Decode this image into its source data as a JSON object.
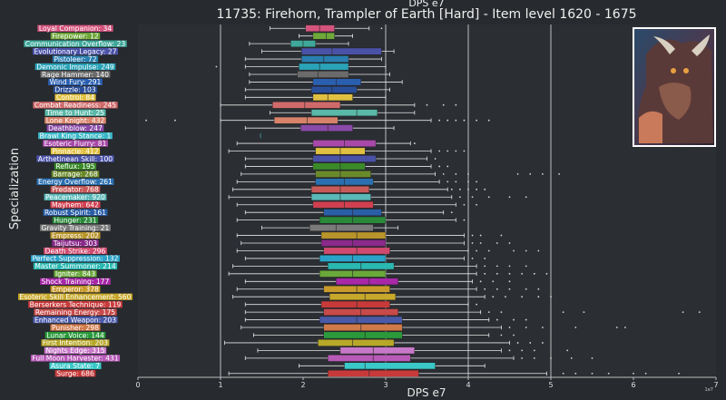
{
  "chart_data": {
    "type": "boxplot",
    "suptitle": "DPS e7",
    "title": "11735: Firehorn, Trampler of Earth [Hard] - Item level 1620 - 1675",
    "xlabel": "DPS e7",
    "ylabel": "Specialization",
    "xlim": [
      0,
      7
    ],
    "xticks": [
      "0",
      "1",
      "2",
      "3",
      "4",
      "5",
      "6",
      "7"
    ],
    "xgrid": [
      1,
      3,
      4,
      5
    ],
    "offset_label": "1e7",
    "grid": true,
    "categories": [
      {
        "label": "Loyal Companion: 34",
        "color": "#d4547e",
        "stats": [
          1.6,
          2.03,
          2.2,
          2.38,
          2.8
        ],
        "fliers": [
          2.95
        ]
      },
      {
        "label": "Firepower: 12",
        "color": "#6fa83a",
        "stats": [
          1.95,
          2.12,
          2.28,
          2.38,
          2.6
        ],
        "fliers": []
      },
      {
        "label": "Communication Overflow: 23",
        "color": "#3fa89a",
        "stats": [
          1.35,
          1.85,
          2.0,
          2.15,
          2.55
        ],
        "fliers": []
      },
      {
        "label": "Evolutionary Legacy: 27",
        "color": "#4a52a8",
        "stats": [
          1.5,
          1.98,
          2.35,
          2.95,
          3.1
        ],
        "fliers": []
      },
      {
        "label": "Pistoleer: 72",
        "color": "#2a7fb0",
        "stats": [
          1.3,
          1.98,
          2.25,
          2.55,
          2.95
        ],
        "fliers": []
      },
      {
        "label": "Demonic Impulse: 249",
        "color": "#2aa3b8",
        "stats": [
          1.3,
          1.95,
          2.2,
          2.55,
          3.0
        ],
        "fliers": [
          0.95
        ]
      },
      {
        "label": "Rage Hammer: 140",
        "color": "#6b6b6b",
        "stats": [
          1.35,
          1.93,
          2.18,
          2.55,
          3.05
        ],
        "fliers": []
      },
      {
        "label": "Wind Fury: 291",
        "color": "#2a5fb0",
        "stats": [
          1.35,
          2.12,
          2.4,
          2.7,
          3.2
        ],
        "fliers": []
      },
      {
        "label": "Drizzle: 103",
        "color": "#2a4f9a",
        "stats": [
          1.3,
          2.1,
          2.35,
          2.65,
          3.05
        ],
        "fliers": []
      },
      {
        "label": "Control: 84",
        "color": "#e0c040",
        "stats": [
          1.3,
          2.12,
          2.3,
          2.6,
          3.0
        ],
        "fliers": []
      },
      {
        "label": "Combat Readiness: 245",
        "color": "#d06a6a",
        "stats": [
          1.0,
          1.63,
          2.02,
          2.45,
          3.35
        ],
        "fliers": [
          3.5,
          3.7,
          3.85
        ]
      },
      {
        "label": "Time to Hunt: 25",
        "color": "#5ab8a8",
        "stats": [
          1.6,
          2.1,
          2.65,
          2.9,
          3.35
        ],
        "fliers": []
      },
      {
        "label": "Lone Knight: 432",
        "color": "#d8826a",
        "stats": [
          1.0,
          1.65,
          2.05,
          2.42,
          3.55
        ],
        "fliers": [
          0.1,
          0.45,
          3.65,
          3.75,
          3.85,
          3.95,
          4.1,
          4.25
        ]
      },
      {
        "label": "Deathblow: 247",
        "color": "#8a4aa8",
        "stats": [
          1.3,
          1.97,
          2.3,
          2.6,
          3.1
        ],
        "fliers": []
      },
      {
        "label": "Brawl King Stance: 1",
        "color": "#3ab8c8",
        "stats": [
          1.48,
          1.48,
          1.48,
          1.48,
          1.48
        ],
        "fliers": []
      },
      {
        "label": "Esoteric Flurry: 81",
        "color": "#a848a8",
        "stats": [
          1.2,
          2.12,
          2.5,
          2.88,
          3.3
        ],
        "fliers": [
          3.35
        ]
      },
      {
        "label": "Pinnacle: 412",
        "color": "#e0c040",
        "stats": [
          1.1,
          2.15,
          2.45,
          2.75,
          3.55
        ],
        "fliers": [
          3.65,
          3.75,
          3.85,
          3.95
        ]
      },
      {
        "label": "Arthetinean Skill: 100",
        "color": "#4a52a8",
        "stats": [
          1.3,
          2.12,
          2.45,
          2.88,
          3.5
        ],
        "fliers": [
          3.6
        ]
      },
      {
        "label": "Reflux: 195",
        "color": "#3a8a2a",
        "stats": [
          1.3,
          2.12,
          2.45,
          2.75,
          3.55
        ],
        "fliers": [
          3.65,
          3.75
        ]
      },
      {
        "label": "Barrage: 268",
        "color": "#6a8a2a",
        "stats": [
          1.25,
          2.15,
          2.45,
          2.82,
          3.6
        ],
        "fliers": [
          3.7,
          3.85,
          4.0,
          4.6,
          4.75,
          4.9,
          5.1
        ]
      },
      {
        "label": "Energy Overflow: 261",
        "color": "#2a6fb0",
        "stats": [
          1.2,
          2.15,
          2.5,
          2.85,
          3.65
        ],
        "fliers": [
          3.75,
          3.85,
          4.0,
          4.1
        ]
      },
      {
        "label": "Predator: 768",
        "color": "#c85a5a",
        "stats": [
          1.15,
          2.1,
          2.45,
          2.8,
          3.75
        ],
        "fliers": [
          3.8,
          3.9,
          4.0,
          4.1,
          4.2
        ]
      },
      {
        "label": "Peacemaker: 920",
        "color": "#5ab8b8",
        "stats": [
          1.1,
          2.1,
          2.45,
          2.82,
          3.8
        ],
        "fliers": [
          3.9,
          4.05,
          4.25,
          4.5,
          4.7
        ]
      },
      {
        "label": "Mayhem: 642",
        "color": "#d04050",
        "stats": [
          1.2,
          2.12,
          2.5,
          2.85,
          3.85
        ],
        "fliers": [
          3.95,
          4.1
        ]
      },
      {
        "label": "Robust Spirit: 161",
        "color": "#2a5fa8",
        "stats": [
          1.3,
          2.25,
          2.6,
          2.95,
          3.7
        ],
        "fliers": [
          3.8
        ]
      },
      {
        "label": "Hunger: 231",
        "color": "#2a8a3a",
        "stats": [
          1.2,
          2.2,
          2.6,
          3.0,
          3.85
        ],
        "fliers": [
          3.95
        ]
      },
      {
        "label": "Gravity Training: 21",
        "color": "#7a7a7a",
        "stats": [
          1.5,
          2.08,
          2.4,
          2.85,
          3.15
        ],
        "fliers": []
      },
      {
        "label": "Empress: 202",
        "color": "#b8942a",
        "stats": [
          1.2,
          2.22,
          2.65,
          3.0,
          3.95
        ],
        "fliers": [
          4.05,
          4.15,
          4.4
        ]
      },
      {
        "label": "Taijutsu: 303",
        "color": "#8a2a8a",
        "stats": [
          1.25,
          2.22,
          2.6,
          3.0,
          3.95
        ],
        "fliers": [
          4.05,
          4.15,
          4.35,
          4.5
        ]
      },
      {
        "label": "Death Strike: 296",
        "color": "#d04a70",
        "stats": [
          1.2,
          2.25,
          2.65,
          3.05,
          4.0
        ],
        "fliers": [
          4.1,
          4.25,
          4.55,
          4.7,
          4.85
        ]
      },
      {
        "label": "Perfect Suppression: 132",
        "color": "#2aa3c8",
        "stats": [
          1.3,
          2.2,
          2.6,
          3.0,
          3.95
        ],
        "fliers": [
          4.05,
          4.2
        ]
      },
      {
        "label": "Master Summoner: 214",
        "color": "#2ab8b0",
        "stats": [
          1.15,
          2.3,
          2.7,
          3.1,
          4.1
        ],
        "fliers": [
          4.2,
          4.35,
          4.5,
          4.7
        ]
      },
      {
        "label": "Igniter: 843",
        "color": "#6aa83a",
        "stats": [
          1.1,
          2.2,
          2.6,
          3.0,
          4.1
        ],
        "fliers": [
          4.2,
          4.35,
          4.5,
          4.65,
          4.8,
          4.95
        ]
      },
      {
        "label": "Shock Training: 177",
        "color": "#a828a8",
        "stats": [
          1.3,
          2.4,
          2.8,
          3.15,
          4.05
        ],
        "fliers": [
          4.15,
          4.3,
          4.5
        ]
      },
      {
        "label": "Emperor: 378",
        "color": "#c89a2a",
        "stats": [
          1.2,
          2.25,
          2.65,
          3.05,
          4.1
        ],
        "fliers": [
          4.2,
          4.35,
          4.5,
          4.7,
          4.85
        ]
      },
      {
        "label": "Esoteric Skill Enhancement: 560",
        "color": "#c8a82a",
        "stats": [
          1.15,
          2.32,
          2.75,
          3.12,
          4.2
        ],
        "fliers": [
          4.3,
          4.45,
          4.65,
          4.85,
          5.0
        ]
      },
      {
        "label": "Berserkers Technique: 119",
        "color": "#c83a3a",
        "stats": [
          1.3,
          2.22,
          2.65,
          3.05,
          4.0
        ],
        "fliers": [
          4.1
        ]
      },
      {
        "label": "Remaining Energy: 175",
        "color": "#c84a4a",
        "stats": [
          1.3,
          2.25,
          2.7,
          3.15,
          4.15
        ],
        "fliers": [
          4.25,
          4.4,
          5.15,
          5.4,
          6.6,
          6.8
        ]
      },
      {
        "label": "Enhanced Weapon: 203",
        "color": "#4a5aa8",
        "stats": [
          1.3,
          2.2,
          2.65,
          3.2,
          4.25
        ],
        "fliers": [
          4.35,
          4.55,
          4.7
        ]
      },
      {
        "label": "Punisher: 298",
        "color": "#d07a4a",
        "stats": [
          1.25,
          2.25,
          2.7,
          3.2,
          4.4
        ],
        "fliers": [
          4.5,
          4.7,
          4.9,
          5.3,
          5.8,
          5.9
        ]
      },
      {
        "label": "Lunar Voice: 144",
        "color": "#2a9a3a",
        "stats": [
          1.4,
          2.25,
          2.75,
          3.2,
          4.25
        ],
        "fliers": [
          4.4,
          4.55
        ]
      },
      {
        "label": "First Intention: 203",
        "color": "#b8a82a",
        "stats": [
          1.05,
          2.18,
          2.6,
          3.1,
          4.5
        ],
        "fliers": [
          4.6,
          4.75,
          4.9
        ]
      },
      {
        "label": "Nights Edge: 315",
        "color": "#c878c8",
        "stats": [
          1.45,
          2.45,
          2.85,
          3.35,
          4.4
        ],
        "fliers": [
          4.5,
          4.65,
          4.8,
          5.2
        ]
      },
      {
        "label": "Full Moon Harvester: 431",
        "color": "#b85ab8",
        "stats": [
          1.3,
          2.3,
          2.85,
          3.3,
          4.55
        ],
        "fliers": [
          4.65,
          4.8,
          5.0,
          5.25,
          5.5
        ]
      },
      {
        "label": "Asura State: 7",
        "color": "#3ac8c8",
        "stats": [
          1.95,
          2.5,
          2.75,
          3.6,
          4.2
        ],
        "fliers": []
      },
      {
        "label": "Surge: 686",
        "color": "#c83a3a",
        "stats": [
          1.1,
          2.3,
          2.8,
          3.4,
          4.95
        ],
        "fliers": [
          5.15,
          5.3,
          5.5,
          5.7,
          6.0,
          6.15,
          6.55
        ]
      }
    ]
  }
}
